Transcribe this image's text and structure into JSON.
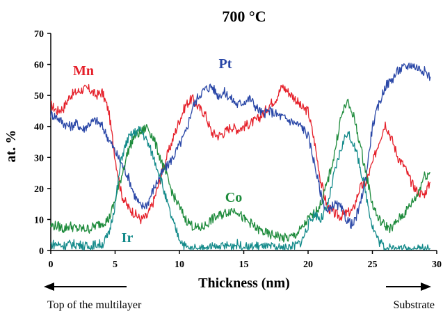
{
  "chart_data": {
    "type": "line",
    "title": "700 °C",
    "xlabel": "Thickness (nm)",
    "ylabel": "at. %",
    "xlim": [
      0,
      30
    ],
    "ylim": [
      0,
      70
    ],
    "xticks": [
      0,
      5,
      10,
      15,
      20,
      25,
      30
    ],
    "yticks": [
      0,
      10,
      20,
      30,
      40,
      50,
      60,
      70
    ],
    "grid": false,
    "annotations": {
      "left_arrow_label": "Top of the multilayer",
      "right_arrow_label": "Substrate"
    },
    "series": [
      {
        "name": "Mn",
        "color": "#e5202a",
        "x": [
          0,
          0.5,
          1,
          1.5,
          2,
          2.5,
          3,
          3.5,
          4,
          4.5,
          5,
          5.5,
          6,
          6.5,
          7,
          7.5,
          8,
          8.5,
          9,
          9.5,
          10,
          10.5,
          11,
          11.5,
          12,
          12.5,
          13,
          13.5,
          14,
          14.5,
          15,
          15.5,
          16,
          16.5,
          17,
          17.5,
          18,
          18.5,
          19,
          19.5,
          20,
          20.5,
          21,
          21.5,
          22,
          22.5,
          23,
          23.5,
          24,
          24.5,
          25,
          25.5,
          26,
          26.5,
          27,
          27.5,
          28,
          28.5,
          29,
          29.5
        ],
        "values": [
          47,
          45,
          46,
          50,
          51,
          52,
          52,
          50,
          51,
          45,
          30,
          18,
          14,
          12,
          10,
          11,
          16,
          23,
          30,
          36,
          42,
          47,
          49,
          46,
          44,
          38,
          37,
          38,
          40,
          39,
          40,
          41,
          42,
          44,
          47,
          49,
          53,
          51,
          49,
          46,
          45,
          35,
          22,
          14,
          12,
          11,
          12,
          13,
          20,
          22,
          28,
          35,
          41,
          36,
          30,
          27,
          22,
          19,
          18,
          22
        ]
      },
      {
        "name": "Pt",
        "color": "#2a47a7",
        "x": [
          0,
          0.5,
          1,
          1.5,
          2,
          2.5,
          3,
          3.5,
          4,
          4.5,
          5,
          5.5,
          6,
          6.5,
          7,
          7.5,
          8,
          8.5,
          9,
          9.5,
          10,
          10.5,
          11,
          11.5,
          12,
          12.5,
          13,
          13.5,
          14,
          14.5,
          15,
          15.5,
          16,
          16.5,
          17,
          17.5,
          18,
          18.5,
          19,
          19.5,
          20,
          20.5,
          21,
          21.5,
          22,
          22.5,
          23,
          23.5,
          24,
          24.5,
          25,
          25.5,
          26,
          26.5,
          27,
          27.5,
          28,
          28.5,
          29,
          29.5
        ],
        "values": [
          44,
          43,
          41,
          40,
          41,
          39,
          41,
          42,
          40,
          36,
          32,
          28,
          24,
          18,
          14,
          15,
          20,
          24,
          27,
          30,
          34,
          38,
          46,
          50,
          52,
          53,
          50,
          51,
          49,
          47,
          48,
          49,
          46,
          44,
          45,
          44,
          43,
          42,
          41,
          40,
          37,
          28,
          18,
          12,
          15,
          14,
          10,
          8,
          14,
          24,
          40,
          47,
          53,
          55,
          58,
          59,
          60,
          59,
          58,
          56
        ]
      },
      {
        "name": "Co",
        "color": "#1e8b3c",
        "x": [
          0,
          0.5,
          1,
          1.5,
          2,
          2.5,
          3,
          3.5,
          4,
          4.5,
          5,
          5.5,
          6,
          6.5,
          7,
          7.5,
          8,
          8.5,
          9,
          9.5,
          10,
          10.5,
          11,
          11.5,
          12,
          12.5,
          13,
          13.5,
          14,
          14.5,
          15,
          15.5,
          16,
          16.5,
          17,
          17.5,
          18,
          18.5,
          19,
          19.5,
          20,
          20.5,
          21,
          21.5,
          22,
          22.5,
          23,
          23.5,
          24,
          24.5,
          25,
          25.5,
          26,
          26.5,
          27,
          27.5,
          28,
          28.5,
          29,
          29.5
        ],
        "values": [
          8,
          8,
          7,
          8,
          7,
          7,
          7,
          8,
          9,
          10,
          16,
          24,
          32,
          37,
          38,
          40,
          36,
          30,
          24,
          18,
          14,
          10,
          8,
          7,
          8,
          10,
          11,
          12,
          13,
          13,
          10,
          9,
          7,
          6,
          5,
          5,
          4,
          4,
          5,
          7,
          10,
          12,
          15,
          22,
          30,
          42,
          48,
          44,
          35,
          25,
          15,
          10,
          8,
          7,
          10,
          12,
          15,
          18,
          24,
          25
        ]
      },
      {
        "name": "Ir",
        "color": "#138a8a",
        "x": [
          0,
          0.5,
          1,
          1.5,
          2,
          2.5,
          3,
          3.5,
          4,
          4.5,
          5,
          5.5,
          6,
          6.5,
          7,
          7.5,
          8,
          8.5,
          9,
          9.5,
          10,
          10.5,
          11,
          11.5,
          12,
          12.5,
          13,
          13.5,
          14,
          14.5,
          15,
          15.5,
          16,
          16.5,
          17,
          17.5,
          18,
          18.5,
          19,
          19.5,
          20,
          20.5,
          21,
          21.5,
          22,
          22.5,
          23,
          23.5,
          24,
          24.5,
          25,
          25.5,
          26,
          26.5,
          27,
          27.5,
          28,
          28.5,
          29,
          29.5
        ],
        "values": [
          2,
          2,
          1.5,
          2,
          2,
          1.5,
          1,
          2,
          2,
          5,
          15,
          30,
          36,
          38,
          39,
          35,
          30,
          24,
          16,
          9,
          4,
          1,
          0.5,
          0.5,
          1,
          1,
          1,
          1.5,
          1.5,
          2,
          1,
          1,
          1.5,
          1,
          1,
          1,
          0.5,
          1,
          1.5,
          3,
          8,
          12,
          10,
          14,
          24,
          32,
          38,
          35,
          28,
          18,
          8,
          3,
          1,
          0.5,
          0.5,
          0.5,
          0.5,
          0.5,
          0.5,
          0.5
        ]
      }
    ]
  }
}
